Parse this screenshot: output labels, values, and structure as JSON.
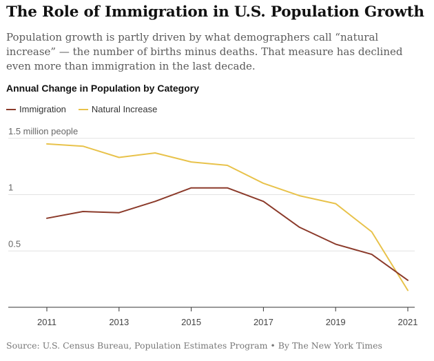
{
  "header": {
    "title": "The Role of Immigration in U.S. Population Growth",
    "subtitle": "Population growth is partly driven by what demographers call “natural increase” — the number of births minus deaths. That measure has declined even more than immigration in the last decade."
  },
  "chart_data": {
    "type": "line",
    "title": "Annual Change in Population by Category",
    "x": [
      2011,
      2012,
      2013,
      2014,
      2015,
      2016,
      2017,
      2018,
      2019,
      2020,
      2021
    ],
    "x_ticks": [
      2011,
      2013,
      2015,
      2017,
      2019,
      2021
    ],
    "y_ticks": [
      {
        "value": 0.5,
        "label": "0.5"
      },
      {
        "value": 1,
        "label": "1"
      },
      {
        "value": 1.5,
        "label": "1.5 million people"
      }
    ],
    "ylim": [
      0,
      1.5
    ],
    "xlabel": "",
    "ylabel": "",
    "series": [
      {
        "name": "Immigration",
        "color": "#8b3a2a",
        "values": [
          0.79,
          0.85,
          0.84,
          0.94,
          1.06,
          1.06,
          0.94,
          0.71,
          0.56,
          0.47,
          0.24
        ]
      },
      {
        "name": "Natural Increase",
        "color": "#e8c24a",
        "values": [
          1.45,
          1.43,
          1.33,
          1.37,
          1.29,
          1.26,
          1.1,
          0.99,
          0.92,
          0.67,
          0.15
        ]
      }
    ]
  },
  "footer": {
    "source": "Source: U.S. Census Bureau, Population Estimates Program • By The New York Times"
  }
}
